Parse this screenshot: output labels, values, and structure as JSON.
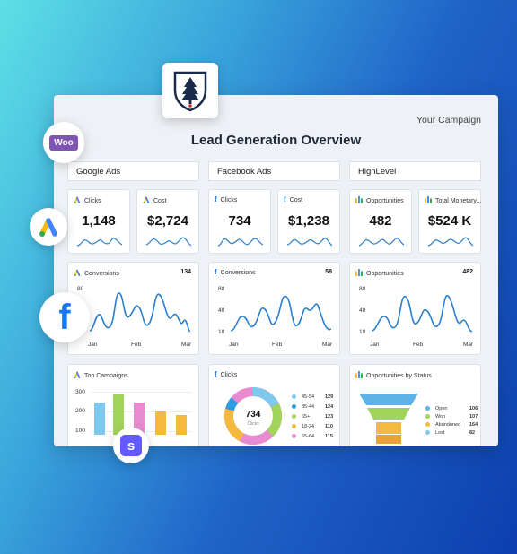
{
  "header": {
    "campaign": "Your Campaign",
    "title": "Lead Generation Overview"
  },
  "sections": {
    "google_ads": "Google Ads",
    "facebook_ads": "Facebook Ads",
    "highlevel": "HighLevel"
  },
  "kpis": {
    "google_clicks": {
      "label": "Clicks",
      "value": "1,148"
    },
    "google_cost": {
      "label": "Cost",
      "value": "$2,724"
    },
    "fb_clicks": {
      "label": "Clicks",
      "value": "734"
    },
    "fb_cost": {
      "label": "Cost",
      "value": "$1,238"
    },
    "hl_opps": {
      "label": "Opportunities",
      "value": "482"
    },
    "hl_monetary": {
      "label": "Total Monetary...",
      "value": "$524 K"
    }
  },
  "line_cards": {
    "google_conv": {
      "label": "Conversions",
      "count": "134",
      "yticks": [
        "80",
        "40",
        "10"
      ],
      "xticks": [
        "Jan",
        "Feb",
        "Mar"
      ]
    },
    "fb_conv": {
      "label": "Conversions",
      "count": "58",
      "yticks": [
        "80",
        "40",
        "10"
      ],
      "xticks": [
        "Jan",
        "Feb",
        "Mar"
      ]
    },
    "hl_opps": {
      "label": "Opportunities",
      "count": "482",
      "yticks": [
        "80",
        "40",
        "10"
      ],
      "xticks": [
        "Jan",
        "Feb",
        "Mar"
      ]
    }
  },
  "bottom": {
    "top_campaigns": {
      "label": "Top Campaigns",
      "yticks": [
        "300",
        "200",
        "100"
      ]
    },
    "fb_clicks": {
      "label": "Clicks",
      "center_value": "734",
      "center_label": "Clicks",
      "legend": [
        {
          "label": "45-54",
          "value": "129",
          "color": "#7ec8ee"
        },
        {
          "label": "35-44",
          "value": "124",
          "color": "#2c9be0"
        },
        {
          "label": "65+",
          "value": "123",
          "color": "#a2d35a"
        },
        {
          "label": "18-24",
          "value": "110",
          "color": "#f4b93d"
        },
        {
          "label": "55-64",
          "value": "115",
          "color": "#e88bd0"
        }
      ]
    },
    "opps_status": {
      "label": "Opportunities by Status",
      "legend": [
        {
          "label": "Open",
          "value": "106",
          "color": "#5bb3e8"
        },
        {
          "label": "Won",
          "value": "107",
          "color": "#a2d35a"
        },
        {
          "label": "Abandoned",
          "value": "164",
          "color": "#f4b93d"
        },
        {
          "label": "Lost",
          "value": "82",
          "color": "#7ec8ee"
        }
      ]
    }
  },
  "floating_icons": [
    "woocommerce-icon",
    "google-ads-icon",
    "facebook-icon",
    "stripe-icon",
    "crest-logo"
  ],
  "colors": {
    "line": "#2a7fd0",
    "accent": "#1e2a3a"
  }
}
